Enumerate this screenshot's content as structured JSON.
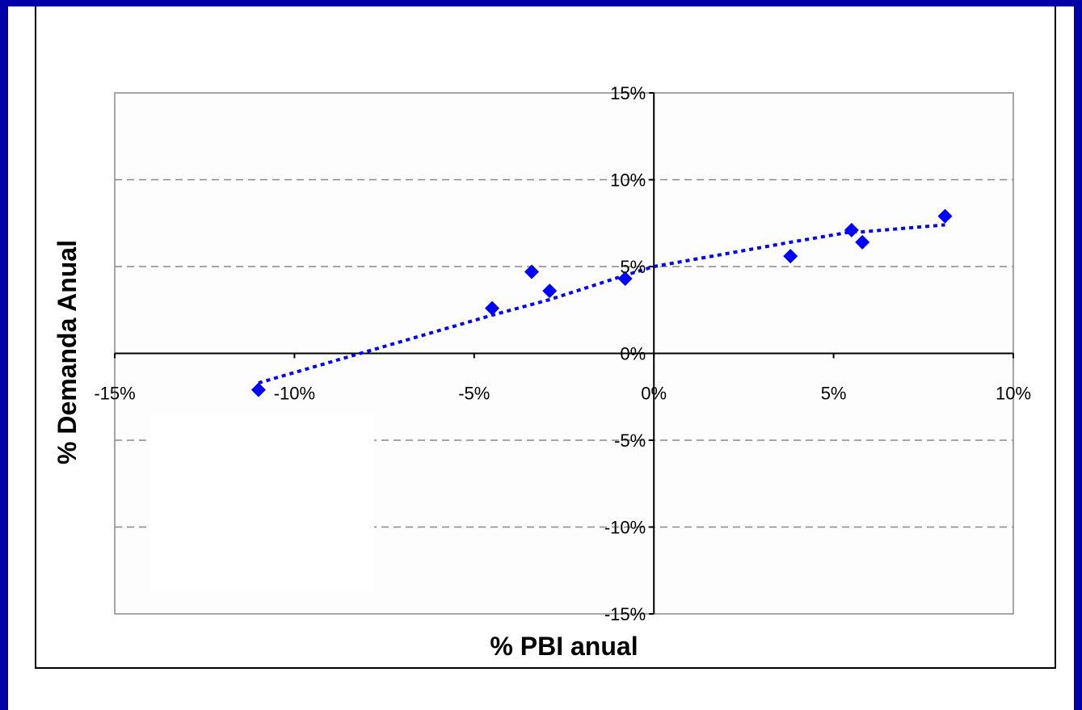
{
  "chart_data": {
    "type": "scatter",
    "xlabel": "% PBI anual",
    "ylabel": "% Demanda Anual",
    "xlim": [
      -0.15,
      0.1
    ],
    "ylim": [
      -0.15,
      0.15
    ],
    "x_ticks": [
      "-15%",
      "-10%",
      "-5%",
      "0%",
      "5%",
      "10%"
    ],
    "y_ticks": [
      "15%",
      "10%",
      "5%",
      "0%",
      "-5%",
      "-10%",
      "-15%"
    ],
    "grid": "horizontal dashed",
    "marker": "diamond",
    "marker_color": "#0000ff",
    "trendline_color": "#0000ff",
    "series": [
      {
        "points": [
          {
            "x": -0.11,
            "y": -0.021
          },
          {
            "x": -0.045,
            "y": 0.026
          },
          {
            "x": -0.034,
            "y": 0.047
          },
          {
            "x": -0.029,
            "y": 0.036
          },
          {
            "x": -0.008,
            "y": 0.043
          },
          {
            "x": 0.038,
            "y": 0.056
          },
          {
            "x": 0.055,
            "y": 0.071
          },
          {
            "x": 0.058,
            "y": 0.064
          },
          {
            "x": 0.081,
            "y": 0.079
          }
        ]
      }
    ],
    "trendline": [
      {
        "x": -0.11,
        "y": -0.017
      },
      {
        "x": -0.045,
        "y": 0.022
      },
      {
        "x": -0.029,
        "y": 0.031
      },
      {
        "x": -0.008,
        "y": 0.045
      },
      {
        "x": 0.0,
        "y": 0.05
      },
      {
        "x": 0.038,
        "y": 0.064
      },
      {
        "x": 0.055,
        "y": 0.07
      },
      {
        "x": 0.058,
        "y": 0.07
      },
      {
        "x": 0.081,
        "y": 0.074
      }
    ]
  }
}
